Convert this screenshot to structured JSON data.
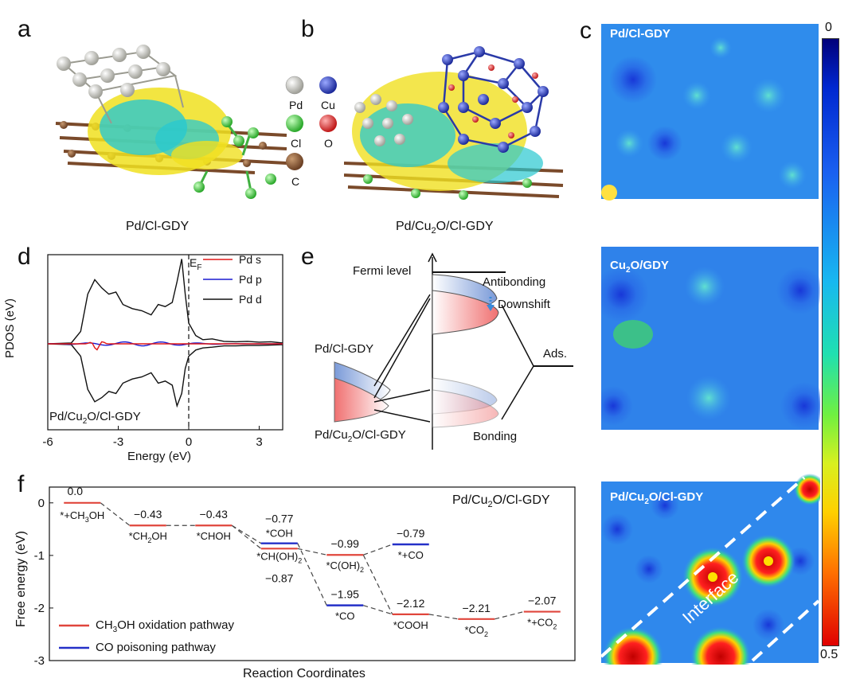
{
  "panels": {
    "a": {
      "letter": "a",
      "caption": "Pd/Cl-GDY"
    },
    "b": {
      "letter": "b",
      "caption_pre": "Pd/Cu",
      "caption_sub": "2",
      "caption_post": "O/Cl-GDY"
    },
    "c": {
      "letter": "c",
      "maps": [
        {
          "title_pre": "Pd/Cl-GDY",
          "title_sub": "",
          "title_post": ""
        },
        {
          "title_pre": "Cu",
          "title_sub": "2",
          "title_post": "O/GDY"
        },
        {
          "title_pre": "Pd/Cu",
          "title_sub": "2",
          "title_post": "O/Cl-GDY"
        }
      ],
      "interface_label": "Interface",
      "colorbar": {
        "min": "0",
        "max": "0.5"
      }
    },
    "d": {
      "letter": "d"
    },
    "e": {
      "letter": "e",
      "fermi": "Fermi level",
      "antibonding": "Antibonding",
      "downshift": "Downshift",
      "ads": "Ads.",
      "bonding": "Bonding",
      "pd_cl": "Pd/Cl-GDY",
      "pd_cu_pre": "Pd/Cu",
      "pd_cu_sub": "2",
      "pd_cu_post": "O/Cl-GDY"
    },
    "f": {
      "letter": "f"
    }
  },
  "legend_atoms": [
    {
      "label": "Pd",
      "color": "#e8e8e0"
    },
    {
      "label": "Cu",
      "color": "#3a4fc4"
    },
    {
      "label": "Cl",
      "color": "#5fe05a"
    },
    {
      "label": "O",
      "color": "#e83838"
    },
    {
      "label": "C",
      "color": "#e0b08a"
    }
  ],
  "chart_data": [
    {
      "type": "line",
      "panel": "d",
      "xlabel": "Energy (eV)",
      "ylabel": "PDOS (eV)",
      "xlim": [
        -6,
        4
      ],
      "xticks": [
        "-6",
        "-3",
        "0",
        "3"
      ],
      "fermi_label": "E",
      "fermi_sub": "F",
      "inset_label_pre": "Pd/Cu",
      "inset_label_sub": "2",
      "inset_label_post": "O/Cl-GDY",
      "series": [
        {
          "name": "Pd s",
          "color": "#e01818"
        },
        {
          "name": "Pd p",
          "color": "#1a1ad0"
        },
        {
          "name": "Pd d",
          "color": "#111111"
        }
      ],
      "pd_d_upper": {
        "x": [
          -6,
          -5,
          -4.6,
          -4.3,
          -4.0,
          -3.7,
          -3.4,
          -3.1,
          -2.8,
          -2.4,
          -2.0,
          -1.6,
          -1.3,
          -1.0,
          -0.7,
          -0.5,
          -0.3,
          -0.15,
          0,
          0.3,
          0.6,
          1.0,
          1.5,
          2.0,
          2.5,
          3.0,
          3.5,
          4.0
        ],
        "y": [
          0,
          0.02,
          0.3,
          1.2,
          1.55,
          1.35,
          1.2,
          1.25,
          0.95,
          0.85,
          0.8,
          0.7,
          0.95,
          0.9,
          1.0,
          1.5,
          2.05,
          1.2,
          0.5,
          0.2,
          0.1,
          0.12,
          0.06,
          0.05,
          0.06,
          0.04,
          0.05,
          0.02
        ]
      },
      "pd_d_lower": {
        "x": [
          -6,
          -5,
          -4.6,
          -4.3,
          -4.0,
          -3.7,
          -3.4,
          -3.1,
          -2.8,
          -2.4,
          -2.0,
          -1.6,
          -1.3,
          -1.0,
          -0.7,
          -0.5,
          -0.3,
          -0.15,
          0,
          0.3,
          0.6,
          1.0,
          1.5,
          2.0,
          2.5,
          3.0,
          3.5,
          4.0
        ],
        "y": [
          0,
          -0.02,
          -0.3,
          -1.1,
          -1.4,
          -1.3,
          -1.15,
          -1.2,
          -0.95,
          -0.85,
          -0.8,
          -0.7,
          -0.95,
          -0.9,
          -1.0,
          -1.5,
          -1.2,
          -0.6,
          -0.3,
          -0.15,
          -0.1,
          -0.08,
          -0.05,
          -0.05,
          -0.04,
          -0.04,
          -0.03,
          -0.02
        ]
      }
    },
    {
      "type": "line",
      "panel": "f",
      "title_pre": "Pd/Cu",
      "title_sub": "2",
      "title_post": "O/Cl-GDY",
      "xlabel": "Reaction Coordinates",
      "ylabel": "Free energy (eV)",
      "ylim": [
        -3,
        0.3
      ],
      "yticks": [
        "0",
        "-1",
        "-2",
        "-3"
      ],
      "series": [
        {
          "name": "CH3OH oxidation pathway",
          "name_pre": "CH",
          "name_sub": "3",
          "name_post": "OH oxidation pathway",
          "color": "#e0463c"
        },
        {
          "name": "CO poisoning pathway",
          "name_pre": "CO poisoning pathway",
          "name_sub": "",
          "name_post": "",
          "color": "#2430c8"
        }
      ],
      "red_levels": [
        {
          "pos": 0,
          "value": 0.0,
          "value_label": "0.0",
          "species": "*+CH3OH",
          "sp_pre": "*+CH",
          "sp_sub": "3",
          "sp_post": "OH"
        },
        {
          "pos": 1,
          "value": -0.43,
          "value_label": "−0.43",
          "species": "*CH2OH",
          "sp_pre": "*CH",
          "sp_sub": "2",
          "sp_post": "OH"
        },
        {
          "pos": 2,
          "value": -0.43,
          "value_label": "−0.43",
          "species": "*CHOH",
          "sp_pre": "*CHOH",
          "sp_sub": "",
          "sp_post": ""
        },
        {
          "pos": 3,
          "value": -0.87,
          "value_label": "−0.87",
          "species": "*CH(OH)2",
          "sp_pre": "*CH(OH)",
          "sp_sub": "2",
          "sp_post": ""
        },
        {
          "pos": 4,
          "value": -0.99,
          "value_label": "−0.99",
          "species": "*C(OH)2",
          "sp_pre": "*C(OH)",
          "sp_sub": "2",
          "sp_post": ""
        },
        {
          "pos": 5,
          "value": -2.12,
          "value_label": "−2.12",
          "species": "*COOH",
          "sp_pre": "*COOH",
          "sp_sub": "",
          "sp_post": ""
        },
        {
          "pos": 6,
          "value": -2.21,
          "value_label": "−2.21",
          "species": "*CO2",
          "sp_pre": "*CO",
          "sp_sub": "2",
          "sp_post": ""
        },
        {
          "pos": 7,
          "value": -2.07,
          "value_label": "−2.07",
          "species": "*+CO2",
          "sp_pre": "*+CO",
          "sp_sub": "2",
          "sp_post": ""
        }
      ],
      "blue_levels": [
        {
          "pos": 3,
          "value": -0.77,
          "value_label": "−0.77",
          "species": "*COH",
          "sp_pre": "*COH",
          "sp_sub": "",
          "sp_post": ""
        },
        {
          "pos": 4,
          "value": -1.95,
          "value_label": "−1.95",
          "species": "*CO",
          "sp_pre": "*CO",
          "sp_sub": "",
          "sp_post": ""
        },
        {
          "pos": 5,
          "value": -0.79,
          "value_label": "−0.79",
          "species": "*+CO",
          "sp_pre": "*+CO",
          "sp_sub": "",
          "sp_post": ""
        }
      ]
    }
  ]
}
